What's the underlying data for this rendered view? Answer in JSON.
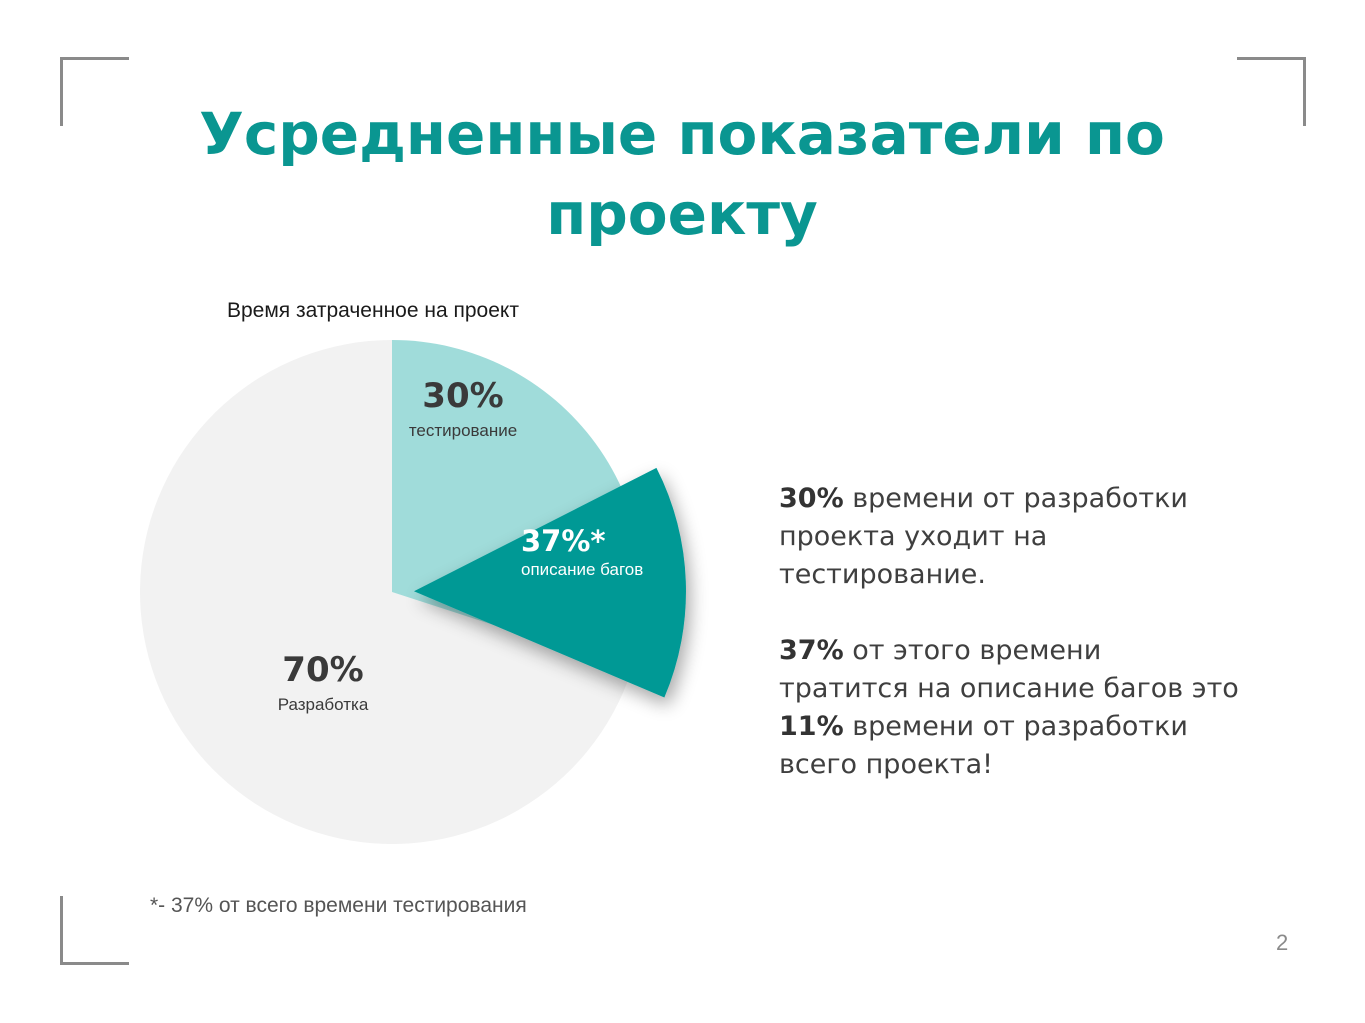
{
  "slide": {
    "title": "Усредненные показатели по проекту",
    "page_number": "2",
    "footnote": "*- 37% от всего времени тестирования"
  },
  "summary": {
    "p1": {
      "bold": "30%",
      "text": " времени от разработки проекта уходит на тестирование."
    },
    "p2": {
      "bold1": "37%",
      "text1": " от этого времени тратится на описание багов это ",
      "bold2": "11%",
      "text2": " времени от разработки всего проекта!"
    }
  },
  "colors": {
    "title": "#0a9691",
    "development": "#f2f2f2",
    "testing": "#a0dcda",
    "bug_description": "#039995",
    "corner_marks": "#8a8a8a"
  },
  "chart_data": {
    "type": "pie",
    "title": "Время затраченное на проект",
    "slices": [
      {
        "name": "тестирование",
        "label": "30%",
        "value": 30,
        "color": "#a0dcda"
      },
      {
        "name": "Разработка",
        "label": "70%",
        "value": 70,
        "color": "#f2f2f2"
      }
    ],
    "exploded_sub_slice": {
      "name": "описание багов",
      "label": "37%*",
      "value": 37,
      "of": "тестирование",
      "color": "#039995"
    }
  }
}
